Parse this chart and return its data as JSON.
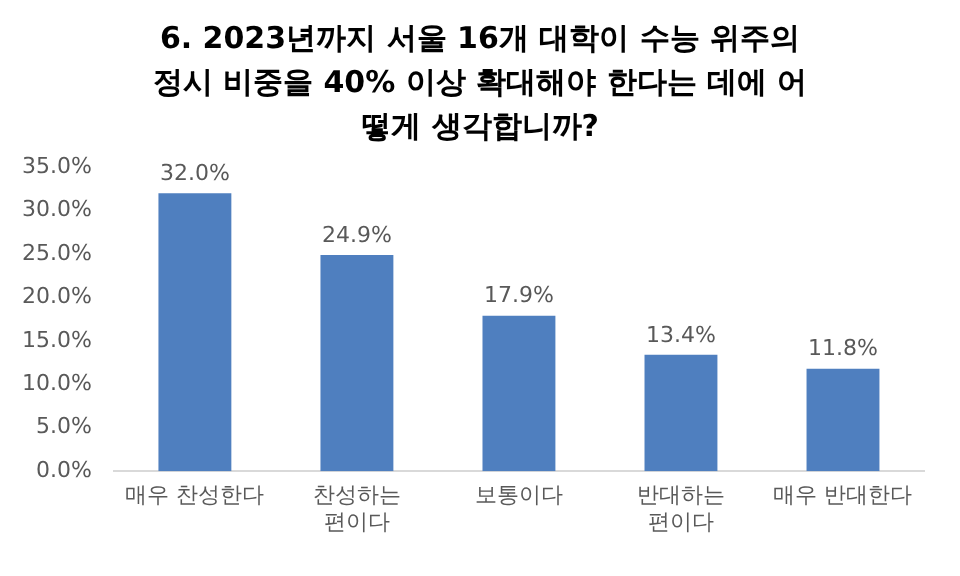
{
  "chart_data": {
    "type": "bar",
    "title": "6. 2023년까지 서울 16개 대학이 수능 위주의 정시 비중을 40% 이상 확대해야 한다는 데에 어떻게 생각합니까?",
    "categories": [
      "매우 찬성한다",
      "찬성하는 편이다",
      "보통이다",
      "반대하는 편이다",
      "매우 반대한다"
    ],
    "values": [
      32.0,
      24.9,
      17.9,
      13.4,
      11.8
    ],
    "value_labels": [
      "32.0%",
      "24.9%",
      "17.9%",
      "13.4%",
      "11.8%"
    ],
    "color": "#4f7fbf",
    "ylim": [
      0,
      35
    ],
    "yticks": [
      {
        "value": 0,
        "label": "0.0%"
      },
      {
        "value": 5,
        "label": "5.0%"
      },
      {
        "value": 10,
        "label": "10.0%"
      },
      {
        "value": 15,
        "label": "15.0%"
      },
      {
        "value": 20,
        "label": "20.0%"
      },
      {
        "value": 25,
        "label": "25.0%"
      },
      {
        "value": 30,
        "label": "30.0%"
      },
      {
        "value": 35,
        "label": "35.0%"
      }
    ],
    "grid": false,
    "legend": false
  }
}
